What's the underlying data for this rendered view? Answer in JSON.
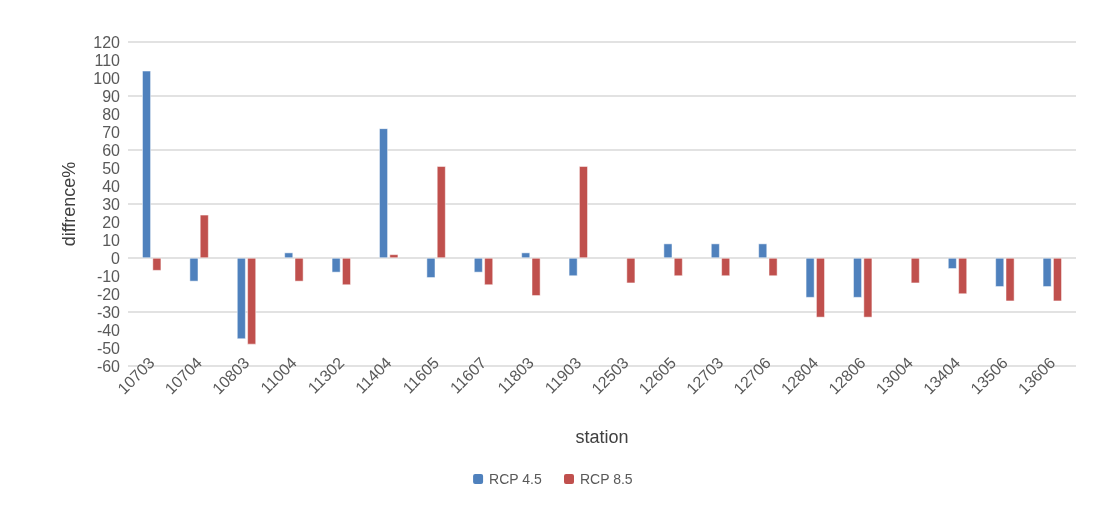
{
  "chart_data": {
    "type": "bar",
    "xlabel": "station",
    "ylabel": "diffrence%",
    "categories": [
      "10703",
      "10704",
      "10803",
      "11004",
      "11302",
      "11404",
      "11605",
      "11607",
      "11803",
      "11903",
      "12503",
      "12605",
      "12703",
      "12706",
      "12804",
      "12806",
      "13004",
      "13404",
      "13506",
      "13606"
    ],
    "series": [
      {
        "name": "RCP 4.5",
        "color": "#4f81bd",
        "values": [
          104,
          -13,
          -45,
          3,
          -8,
          72,
          -11,
          -8,
          3,
          -10,
          null,
          8,
          8,
          8,
          -22,
          -22,
          null,
          -6,
          -16,
          -16
        ]
      },
      {
        "name": "RCP 8.5",
        "color": "#c0504d",
        "values": [
          -7,
          24,
          -48,
          -13,
          -15,
          2,
          51,
          -15,
          -21,
          51,
          -14,
          -10,
          -10,
          -10,
          -33,
          -33,
          -14,
          -20,
          -24,
          -24
        ]
      }
    ],
    "ylim": [
      -60,
      120
    ],
    "yticks": [
      -60,
      -50,
      -40,
      -30,
      -20,
      -10,
      0,
      10,
      20,
      30,
      40,
      50,
      60,
      70,
      80,
      90,
      100,
      110,
      120
    ],
    "grid": "y",
    "legend": "bottom"
  }
}
